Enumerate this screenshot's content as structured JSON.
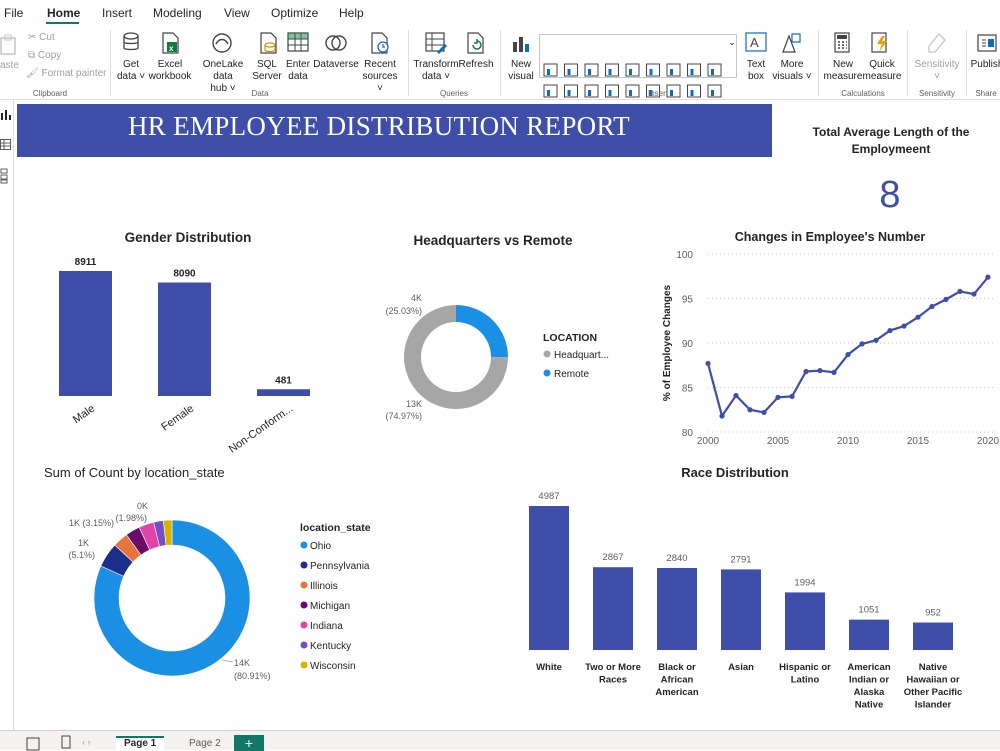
{
  "menu": {
    "items": [
      "File",
      "Home",
      "Insert",
      "Modeling",
      "View",
      "Optimize",
      "Help"
    ],
    "active": "Home"
  },
  "ribbon": {
    "clipboard": {
      "paste": "aste",
      "cut": "Cut",
      "copy": "Copy",
      "format_painter": "Format painter",
      "group": "Clipboard"
    },
    "data": {
      "get_data": [
        "Get",
        "data ˅"
      ],
      "excel": [
        "Excel",
        "workbook"
      ],
      "onelake": [
        "OneLake data",
        "hub ˅"
      ],
      "sql": [
        "SQL",
        "Server"
      ],
      "enter": [
        "Enter",
        "data"
      ],
      "dataverse": [
        "Dataverse",
        ""
      ],
      "recent": [
        "Recent",
        "sources ˅"
      ],
      "group": "Data"
    },
    "queries": {
      "transform": [
        "Transform",
        "data ˅"
      ],
      "refresh": [
        "Refresh",
        ""
      ],
      "group": "Queries"
    },
    "insert": {
      "new_visual": [
        "New",
        "visual"
      ],
      "text_box": [
        "Text",
        "box"
      ],
      "more_visuals": [
        "More",
        "visuals ˅"
      ],
      "group": "Insert"
    },
    "calculations": {
      "new_measure": [
        "New",
        "measure"
      ],
      "quick_measure": [
        "Quick",
        "measure"
      ],
      "group": "Calculations"
    },
    "sensitivity": {
      "label": [
        "Sensitivity",
        "˅"
      ],
      "group": "Sensitivity"
    },
    "share": {
      "publish": [
        "Publish",
        ""
      ],
      "group": "Share"
    }
  },
  "report": {
    "banner_title": "HR EMPLOYEE DISTRIBUTION REPORT",
    "card": {
      "title": "Total Average Length of the Employmeent",
      "value": "8"
    },
    "gender": {
      "title": "Gender Distribution"
    },
    "hq": {
      "title": "Headquarters vs Remote",
      "legend_title": "LOCATION",
      "legend": [
        "Headquart...",
        "Remote"
      ],
      "label_remote": [
        "4K",
        "(25.03%)"
      ],
      "label_hq": [
        "13K",
        "(74.97%)"
      ]
    },
    "changes": {
      "title": "Changes in Employee's Number"
    },
    "state": {
      "title": "Sum of Count by location_state",
      "legend_title": "location_state",
      "labels": [
        [
          "0K",
          "(1.98%)"
        ],
        [
          "1K (3.15%)"
        ],
        [
          "1K",
          "(5.1%)"
        ],
        [
          "14K",
          "(80.91%)"
        ]
      ]
    },
    "race": {
      "title": "Race Distribution"
    }
  },
  "chart_data": [
    {
      "type": "bar",
      "title": "Gender Distribution",
      "categories": [
        "Male",
        "Female",
        "Non-Conform..."
      ],
      "values": [
        8911,
        8090,
        481
      ],
      "color": "#3f4ea8"
    },
    {
      "type": "pie",
      "title": "Headquarters vs Remote",
      "categories": [
        "Headquarters",
        "Remote"
      ],
      "values": [
        74.97,
        25.03
      ],
      "colors": [
        "#a6a6a6",
        "#1a8fe3"
      ]
    },
    {
      "type": "line",
      "title": "Changes in Employee's Number",
      "ylabel": "% of Employee Changes",
      "x": [
        2000,
        2001,
        2002,
        2003,
        2004,
        2005,
        2006,
        2007,
        2008,
        2009,
        2010,
        2011,
        2012,
        2013,
        2014,
        2015,
        2016,
        2017,
        2018,
        2019,
        2020
      ],
      "y": [
        87.7,
        81.8,
        84.1,
        82.5,
        82.2,
        83.9,
        84.0,
        86.8,
        86.9,
        86.7,
        88.7,
        89.9,
        90.3,
        91.4,
        91.9,
        92.9,
        94.1,
        94.9,
        95.8,
        95.5,
        97.4
      ],
      "xlim": [
        2000,
        2020
      ],
      "ylim": [
        80,
        100
      ],
      "xticks": [
        2000,
        2005,
        2010,
        2015,
        2020
      ],
      "yticks": [
        80,
        85,
        90,
        95,
        100
      ],
      "color": "#3f4ea8"
    },
    {
      "type": "pie",
      "title": "Sum of Count by location_state",
      "categories": [
        "Ohio",
        "Pennsylvania",
        "Illinois",
        "Michigan",
        "Indiana",
        "Kentucky",
        "Wisconsin"
      ],
      "values": [
        80.91,
        5.1,
        3.15,
        3.0,
        3.1,
        1.98,
        1.76
      ],
      "colors": [
        "#1a8fe3",
        "#1b2e8c",
        "#e8743b",
        "#6a0b6a",
        "#e044a7",
        "#744ec2",
        "#d9b300"
      ]
    },
    {
      "type": "bar",
      "title": "Race Distribution",
      "categories": [
        [
          "White"
        ],
        [
          "Two or More",
          "Races"
        ],
        [
          "Black or",
          "African",
          "American"
        ],
        [
          "Asian"
        ],
        [
          "Hispanic or",
          "Latino"
        ],
        [
          "American",
          "Indian or",
          "Alaska",
          "Native"
        ],
        [
          "Native",
          "Hawaiian or",
          "Other Pacific",
          "Islander"
        ]
      ],
      "values": [
        4987,
        2867,
        2840,
        2791,
        1994,
        1051,
        952
      ],
      "color": "#3f4ea8"
    }
  ],
  "status": {
    "pages": [
      "Page 1",
      "Page 2"
    ],
    "add_page": "+"
  }
}
